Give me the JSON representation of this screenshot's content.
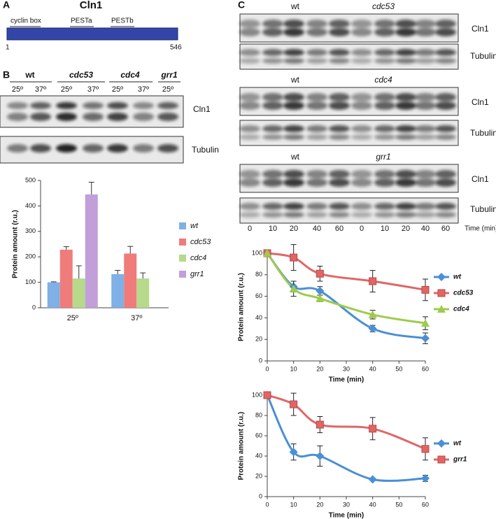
{
  "panel_labels": [
    "A",
    "B",
    "C"
  ],
  "domain_map": {
    "title": "Cln1",
    "features": [
      "cyclin box",
      "PESTa",
      "PESTb"
    ],
    "start": 1,
    "end": 546
  },
  "blot_b": {
    "strains": [
      "wt",
      "cdc53",
      "cdc4",
      "grr1"
    ],
    "temps": [
      "25º",
      "37º",
      "25º",
      "37º",
      "25º",
      "37º",
      "25º"
    ],
    "bands": [
      "Cln1",
      "Tubulin"
    ]
  },
  "blot_c": {
    "groups": [
      {
        "strains": [
          "wt",
          "cdc53"
        ]
      },
      {
        "strains": [
          "wt",
          "cdc4"
        ]
      },
      {
        "strains": [
          "wt",
          "grr1"
        ]
      }
    ],
    "bands": [
      "Cln1",
      "Tubulin"
    ],
    "times": [
      0,
      10,
      20,
      40,
      60,
      0,
      10,
      20,
      40,
      60
    ],
    "time_label": "Time (min)"
  },
  "chart_data": [
    {
      "type": "bar",
      "ylabel": "Protein amount (r.u.)",
      "categories": [
        "25º",
        "37º"
      ],
      "series": [
        {
          "name": "wt",
          "color": "#7fb0e6",
          "values": [
            100,
            132
          ],
          "errors": [
            2,
            15
          ]
        },
        {
          "name": "cdc53",
          "color": "#ef7b7b",
          "values": [
            228,
            213
          ],
          "errors": [
            12,
            28
          ]
        },
        {
          "name": "cdc4",
          "color": "#b6d98b",
          "values": [
            115,
            115
          ],
          "errors": [
            50,
            22
          ]
        },
        {
          "name": "grr1",
          "color": "#c29fd8",
          "values": [
            445,
            null
          ],
          "errors": [
            48,
            null
          ]
        }
      ],
      "ylim": [
        0,
        500
      ],
      "yticks": [
        0,
        100,
        200,
        300,
        400,
        500
      ],
      "legend": "right"
    },
    {
      "type": "line",
      "xlabel": "Time (min)",
      "ylabel": "Protein amount (r.u.)",
      "x": [
        0,
        10,
        20,
        40,
        60
      ],
      "series": [
        {
          "name": "wt",
          "color": "#4a8fd6",
          "marker": "diamond",
          "values": [
            100,
            69,
            65,
            30,
            21
          ],
          "errors": [
            0,
            5,
            4,
            3,
            5
          ]
        },
        {
          "name": "cdc53",
          "color": "#e06666",
          "marker": "square",
          "values": [
            100,
            96,
            81,
            74,
            66
          ],
          "errors": [
            0,
            12,
            7,
            10,
            10
          ]
        },
        {
          "name": "cdc4",
          "color": "#9fcb4b",
          "marker": "triangle",
          "values": [
            100,
            67,
            58,
            43,
            35
          ],
          "errors": [
            0,
            7,
            3,
            4,
            6
          ]
        }
      ],
      "xlim": [
        0,
        60
      ],
      "xticks": [
        0,
        10,
        20,
        30,
        40,
        50,
        60
      ],
      "ylim": [
        0,
        100
      ],
      "yticks": [
        0,
        20,
        40,
        60,
        80,
        100
      ],
      "legend": "right"
    },
    {
      "type": "line",
      "xlabel": "Time (min)",
      "ylabel": "Protein amount (r.u.)",
      "x": [
        0,
        10,
        20,
        40,
        60
      ],
      "series": [
        {
          "name": "wt",
          "color": "#4a8fd6",
          "marker": "diamond",
          "values": [
            100,
            44,
            40,
            17,
            18
          ],
          "errors": [
            0,
            8,
            10,
            1,
            3
          ]
        },
        {
          "name": "grr1",
          "color": "#e06666",
          "marker": "square",
          "values": [
            100,
            91,
            71,
            67,
            47
          ],
          "errors": [
            0,
            11,
            8,
            11,
            11
          ]
        }
      ],
      "xlim": [
        0,
        60
      ],
      "xticks": [
        0,
        10,
        20,
        30,
        40,
        50,
        60
      ],
      "ylim": [
        0,
        100
      ],
      "yticks": [
        0,
        20,
        40,
        60,
        80,
        100
      ],
      "legend": "right"
    }
  ]
}
